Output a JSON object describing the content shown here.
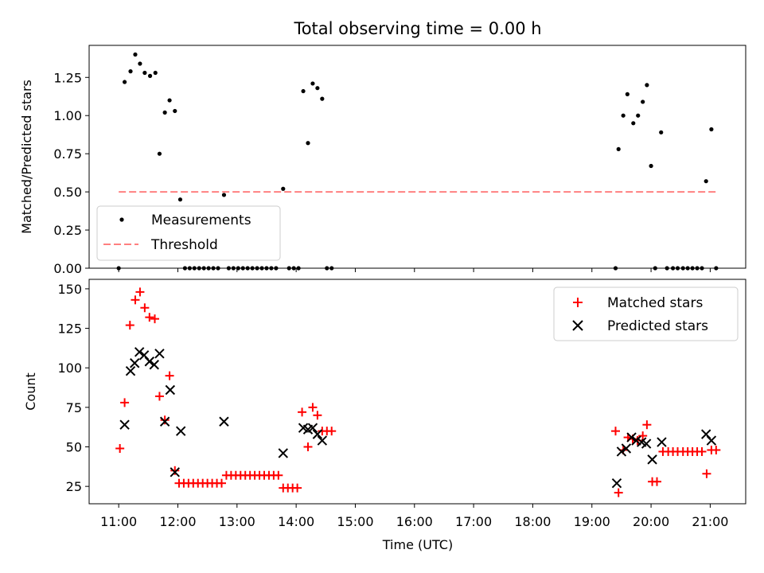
{
  "title": "Total observing time = 0.00 h",
  "chart_data": [
    {
      "type": "scatter",
      "ylabel": "Matched/Predicted stars",
      "xlim": [
        10.5,
        21.6
      ],
      "ylim": [
        0,
        1.46
      ],
      "grid": false,
      "legend": "lower-left",
      "yticks": [
        "0.00",
        "0.25",
        "0.50",
        "0.75",
        "1.00",
        "1.25"
      ],
      "threshold": {
        "name": "Threshold",
        "value": 0.5,
        "x_range": [
          11.0,
          21.1
        ],
        "color": "#ff8080"
      },
      "series": [
        {
          "name": "Measurements",
          "color": "#000000",
          "x": [
            11.0,
            11.1,
            11.2,
            11.28,
            11.36,
            11.44,
            11.53,
            11.62,
            11.69,
            11.78,
            11.86,
            11.95,
            12.04,
            12.12,
            12.2,
            12.28,
            12.36,
            12.44,
            12.52,
            12.6,
            12.68,
            12.78,
            12.86,
            12.94,
            13.02,
            13.1,
            13.18,
            13.26,
            13.34,
            13.42,
            13.5,
            13.58,
            13.66,
            13.78,
            13.88,
            13.96,
            14.04,
            14.12,
            14.2,
            14.28,
            14.36,
            14.44,
            14.52,
            14.6,
            19.4,
            19.45,
            19.53,
            19.6,
            19.7,
            19.78,
            19.86,
            19.93,
            20.0,
            20.07,
            20.17,
            20.27,
            20.37,
            20.45,
            20.54,
            20.62,
            20.7,
            20.78,
            20.86,
            20.93,
            21.02,
            21.1
          ],
          "y": [
            0.0,
            1.22,
            1.29,
            1.4,
            1.34,
            1.28,
            1.26,
            1.28,
            0.75,
            1.02,
            1.1,
            1.03,
            0.45,
            0.0,
            0.0,
            0.0,
            0.0,
            0.0,
            0.0,
            0.0,
            0.0,
            0.48,
            0.0,
            0.0,
            0.0,
            0.0,
            0.0,
            0.0,
            0.0,
            0.0,
            0.0,
            0.0,
            0.0,
            0.52,
            0.0,
            0.0,
            0.0,
            1.16,
            0.82,
            1.21,
            1.18,
            1.11,
            0.0,
            0.0,
            0.0,
            0.78,
            1.0,
            1.14,
            0.95,
            1.0,
            1.09,
            1.2,
            0.67,
            0.0,
            0.89,
            0.0,
            0.0,
            0.0,
            0.0,
            0.0,
            0.0,
            0.0,
            0.0,
            0.57,
            0.91,
            0.0
          ]
        }
      ]
    },
    {
      "type": "scatter",
      "xlabel": "Time (UTC)",
      "ylabel": "Count",
      "xlim": [
        10.5,
        21.6
      ],
      "ylim": [
        14,
        156
      ],
      "grid": false,
      "legend": "top-right",
      "xticks": [
        "11:00",
        "12:00",
        "13:00",
        "14:00",
        "15:00",
        "16:00",
        "17:00",
        "18:00",
        "19:00",
        "20:00",
        "21:00"
      ],
      "yticks": [
        "25",
        "50",
        "75",
        "100",
        "125",
        "150"
      ],
      "series": [
        {
          "name": "Matched stars",
          "color": "#ff0000",
          "marker": "plus",
          "x": [
            11.02,
            11.1,
            11.19,
            11.28,
            11.36,
            11.44,
            11.52,
            11.61,
            11.69,
            11.78,
            11.86,
            11.95,
            12.02,
            12.1,
            12.18,
            12.26,
            12.34,
            12.42,
            12.5,
            12.58,
            12.66,
            12.74,
            12.82,
            12.9,
            12.98,
            13.06,
            13.14,
            13.22,
            13.3,
            13.38,
            13.46,
            13.54,
            13.62,
            13.7,
            13.78,
            13.86,
            13.94,
            14.02,
            14.1,
            14.2,
            14.28,
            14.36,
            14.44,
            14.52,
            14.6,
            19.4,
            19.45,
            19.53,
            19.61,
            19.69,
            19.77,
            19.86,
            19.93,
            20.02,
            20.1,
            20.2,
            20.29,
            20.37,
            20.45,
            20.54,
            20.62,
            20.7,
            20.78,
            20.86,
            20.94,
            21.02,
            21.1
          ],
          "y": [
            49,
            78,
            127,
            143,
            148,
            138,
            132,
            131,
            82,
            67,
            95,
            35,
            27,
            27,
            27,
            27,
            27,
            27,
            27,
            27,
            27,
            27,
            32,
            32,
            32,
            32,
            32,
            32,
            32,
            32,
            32,
            32,
            32,
            32,
            24,
            24,
            24,
            24,
            72,
            50,
            75,
            70,
            60,
            60,
            60,
            60,
            21,
            48,
            56,
            55,
            54,
            57,
            64,
            28,
            28,
            47,
            47,
            47,
            47,
            47,
            47,
            47,
            47,
            47,
            33,
            48,
            48
          ]
        },
        {
          "name": "Predicted stars",
          "color": "#000000",
          "marker": "x",
          "x": [
            11.1,
            11.2,
            11.27,
            11.35,
            11.43,
            11.52,
            11.6,
            11.69,
            11.78,
            11.87,
            11.95,
            12.05,
            12.78,
            13.78,
            14.12,
            14.2,
            14.28,
            14.36,
            14.44,
            19.42,
            19.5,
            19.58,
            19.67,
            19.75,
            19.84,
            19.92,
            20.02,
            20.18,
            20.93,
            21.02
          ],
          "y": [
            64,
            98,
            103,
            110,
            108,
            104,
            102,
            109,
            66,
            86,
            34,
            60,
            66,
            46,
            62,
            61,
            62,
            58,
            54,
            27,
            47,
            49,
            56,
            54,
            53,
            52,
            42,
            53,
            58,
            54
          ]
        }
      ]
    }
  ]
}
